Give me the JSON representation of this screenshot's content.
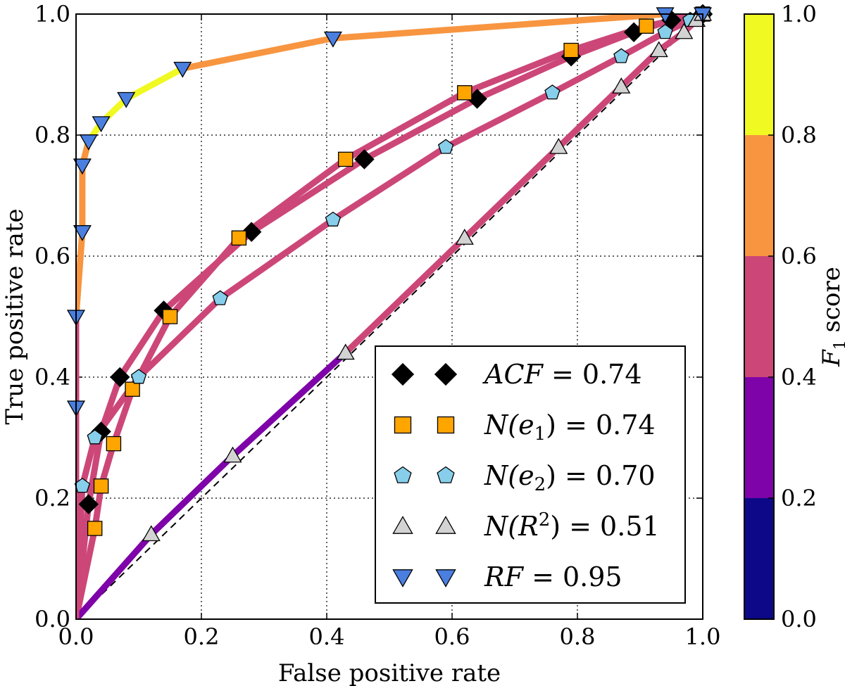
{
  "chart_data": {
    "type": "line",
    "title": "",
    "xlabel": "False positive rate",
    "ylabel": "True positive rate",
    "xlim": [
      0.0,
      1.0
    ],
    "ylim": [
      0.0,
      1.0
    ],
    "grid": true,
    "xticks": [
      "0.0",
      "0.2",
      "0.4",
      "0.6",
      "0.8",
      "1.0"
    ],
    "yticks": [
      "0.0",
      "0.2",
      "0.4",
      "0.6",
      "0.8",
      "1.0"
    ],
    "colorbar": {
      "label_F": "F",
      "label_sub": "1",
      "label_rest": " score",
      "ticks": [
        "0.0",
        "0.2",
        "0.4",
        "0.6",
        "0.8",
        "1.0"
      ],
      "colors": [
        "#0d0887",
        "#7e03a8",
        "#cc4778",
        "#f89540",
        "#f0f921"
      ]
    },
    "legend_position": "lower-right",
    "series": [
      {
        "name": "ACF",
        "legend_math": "ACF",
        "legend_value": "= 0.74",
        "marker": "diamond",
        "marker_color": "#000000",
        "points": [
          [
            0.0,
            0.0
          ],
          [
            0.02,
            0.19
          ],
          [
            0.04,
            0.31
          ],
          [
            0.07,
            0.4
          ],
          [
            0.14,
            0.51
          ],
          [
            0.28,
            0.64
          ],
          [
            0.46,
            0.76
          ],
          [
            0.64,
            0.86
          ],
          [
            0.79,
            0.93
          ],
          [
            0.89,
            0.97
          ],
          [
            0.95,
            0.99
          ],
          [
            1.0,
            1.0
          ]
        ],
        "f1": [
          0.42,
          0.44,
          0.46,
          0.48,
          0.5,
          0.52,
          0.54,
          0.56,
          0.58,
          0.59,
          0.59,
          0.59
        ]
      },
      {
        "name": "N(e1)",
        "legend_math": "N(e",
        "legend_sub": "1",
        "legend_close": ")",
        "legend_value": "= 0.74",
        "marker": "square",
        "marker_color": "#ffa500",
        "points": [
          [
            0.0,
            0.0
          ],
          [
            0.03,
            0.15
          ],
          [
            0.04,
            0.22
          ],
          [
            0.06,
            0.29
          ],
          [
            0.09,
            0.38
          ],
          [
            0.15,
            0.5
          ],
          [
            0.26,
            0.63
          ],
          [
            0.43,
            0.76
          ],
          [
            0.62,
            0.87
          ],
          [
            0.79,
            0.94
          ],
          [
            0.91,
            0.98
          ],
          [
            1.0,
            1.0
          ]
        ],
        "f1": [
          0.42,
          0.44,
          0.46,
          0.48,
          0.5,
          0.52,
          0.54,
          0.56,
          0.58,
          0.59,
          0.59,
          0.59
        ]
      },
      {
        "name": "N(e2)",
        "legend_math": "N(e",
        "legend_sub": "2",
        "legend_close": ")",
        "legend_value": "= 0.70",
        "marker": "pentagon",
        "marker_color": "#87ceeb",
        "points": [
          [
            0.0,
            0.0
          ],
          [
            0.01,
            0.22
          ],
          [
            0.03,
            0.3
          ],
          [
            0.1,
            0.4
          ],
          [
            0.23,
            0.53
          ],
          [
            0.41,
            0.66
          ],
          [
            0.59,
            0.78
          ],
          [
            0.76,
            0.87
          ],
          [
            0.87,
            0.93
          ],
          [
            0.94,
            0.97
          ],
          [
            0.98,
            0.99
          ],
          [
            1.0,
            1.0
          ]
        ],
        "f1": [
          0.42,
          0.44,
          0.46,
          0.48,
          0.5,
          0.52,
          0.54,
          0.56,
          0.58,
          0.59,
          0.59,
          0.59
        ]
      },
      {
        "name": "N(R2)",
        "legend_math": "N(R",
        "legend_sup": "2",
        "legend_close": ")",
        "legend_value": "= 0.51",
        "marker": "triangle-up",
        "marker_color": "#d3d3d3",
        "points": [
          [
            0.0,
            0.0
          ],
          [
            0.12,
            0.14
          ],
          [
            0.25,
            0.27
          ],
          [
            0.43,
            0.44
          ],
          [
            0.62,
            0.63
          ],
          [
            0.77,
            0.78
          ],
          [
            0.87,
            0.88
          ],
          [
            0.93,
            0.94
          ],
          [
            0.97,
            0.97
          ],
          [
            0.99,
            0.99
          ],
          [
            1.0,
            1.0
          ]
        ],
        "f1": [
          0.1,
          0.3,
          0.32,
          0.36,
          0.46,
          0.5,
          0.53,
          0.55,
          0.57,
          0.58,
          0.59
        ]
      },
      {
        "name": "RF",
        "legend_math": "RF",
        "legend_value": "= 0.95",
        "marker": "triangle-down",
        "marker_color": "#4a7fe0",
        "points": [
          [
            0.0,
            0.0
          ],
          [
            0.0,
            0.35
          ],
          [
            0.0,
            0.5
          ],
          [
            0.01,
            0.64
          ],
          [
            0.01,
            0.75
          ],
          [
            0.02,
            0.79
          ],
          [
            0.04,
            0.82
          ],
          [
            0.08,
            0.86
          ],
          [
            0.17,
            0.91
          ],
          [
            0.41,
            0.96
          ],
          [
            0.94,
            1.0
          ],
          [
            1.0,
            1.0
          ]
        ],
        "f1": [
          0.3,
          0.55,
          0.62,
          0.68,
          0.74,
          0.82,
          0.86,
          0.88,
          0.74,
          0.7,
          0.58,
          0.58
        ]
      }
    ]
  }
}
